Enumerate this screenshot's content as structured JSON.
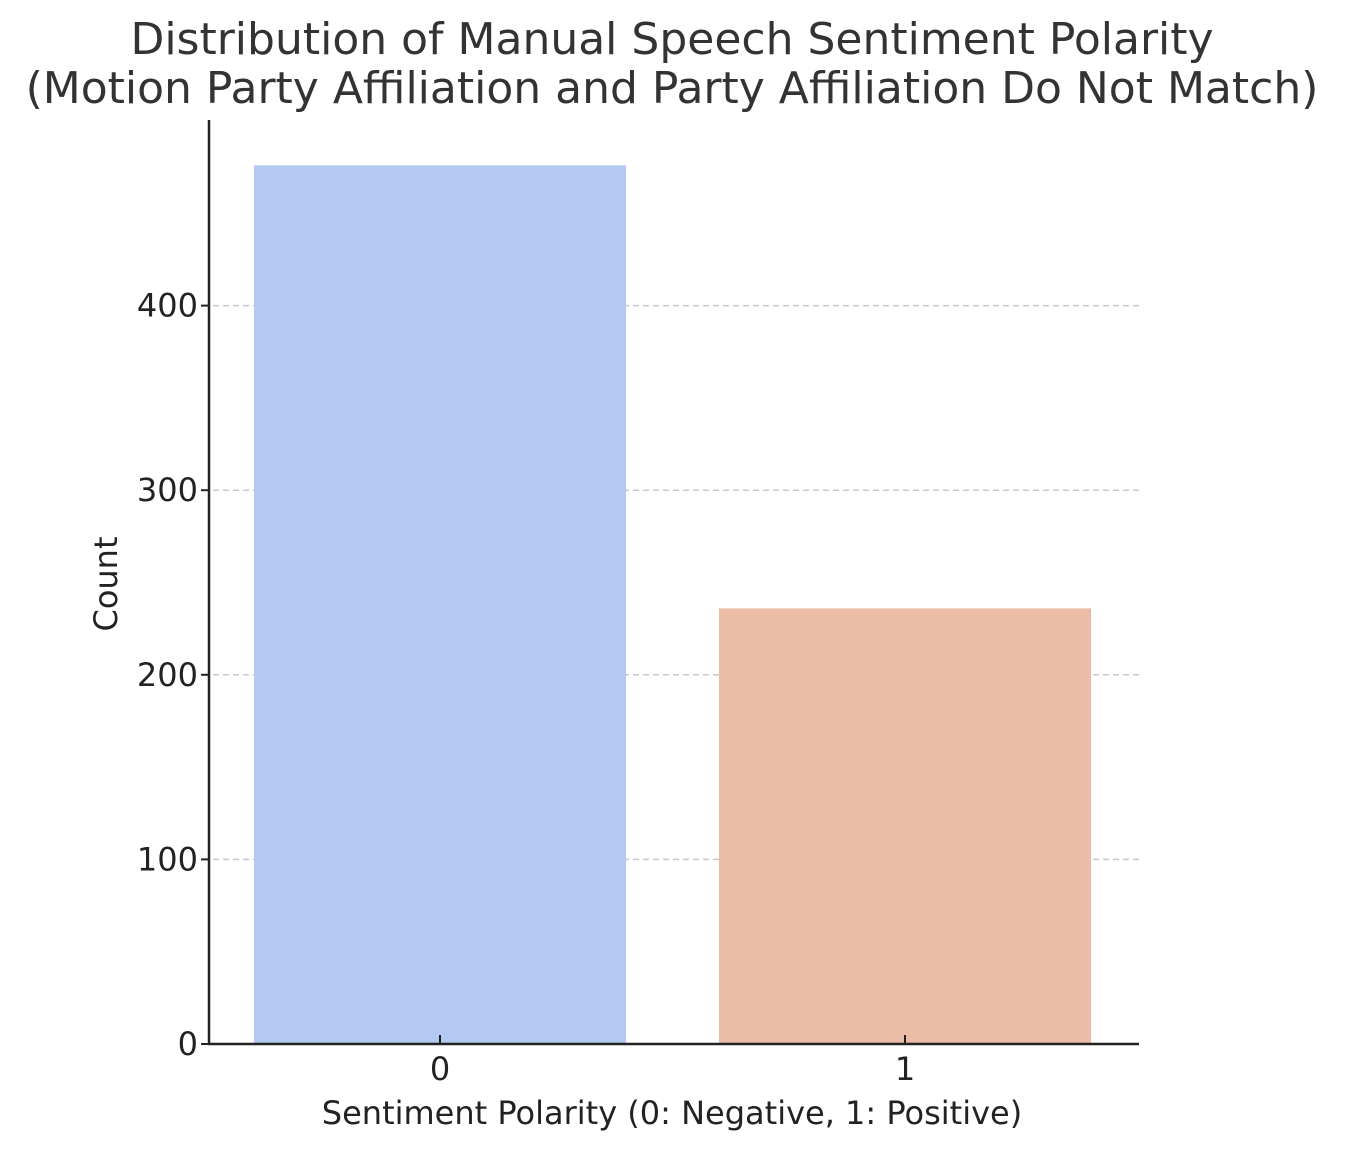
{
  "chart_data": {
    "type": "bar",
    "title_lines": [
      "Distribution of Manual Speech Sentiment Polarity",
      "(Motion Party Affiliation and Party Affiliation Do Not Match)"
    ],
    "xlabel": "Sentiment Polarity (0: Negative, 1: Positive)",
    "ylabel": "Count",
    "categories": [
      "0",
      "1"
    ],
    "values": [
      476,
      236
    ],
    "colors": [
      "#b4c9f2",
      "#ebbca6"
    ],
    "ylim": [
      0,
      500
    ],
    "yticks": [
      0,
      100,
      200,
      300,
      400
    ],
    "grid": "horizontal-dashed",
    "legend": "none"
  }
}
